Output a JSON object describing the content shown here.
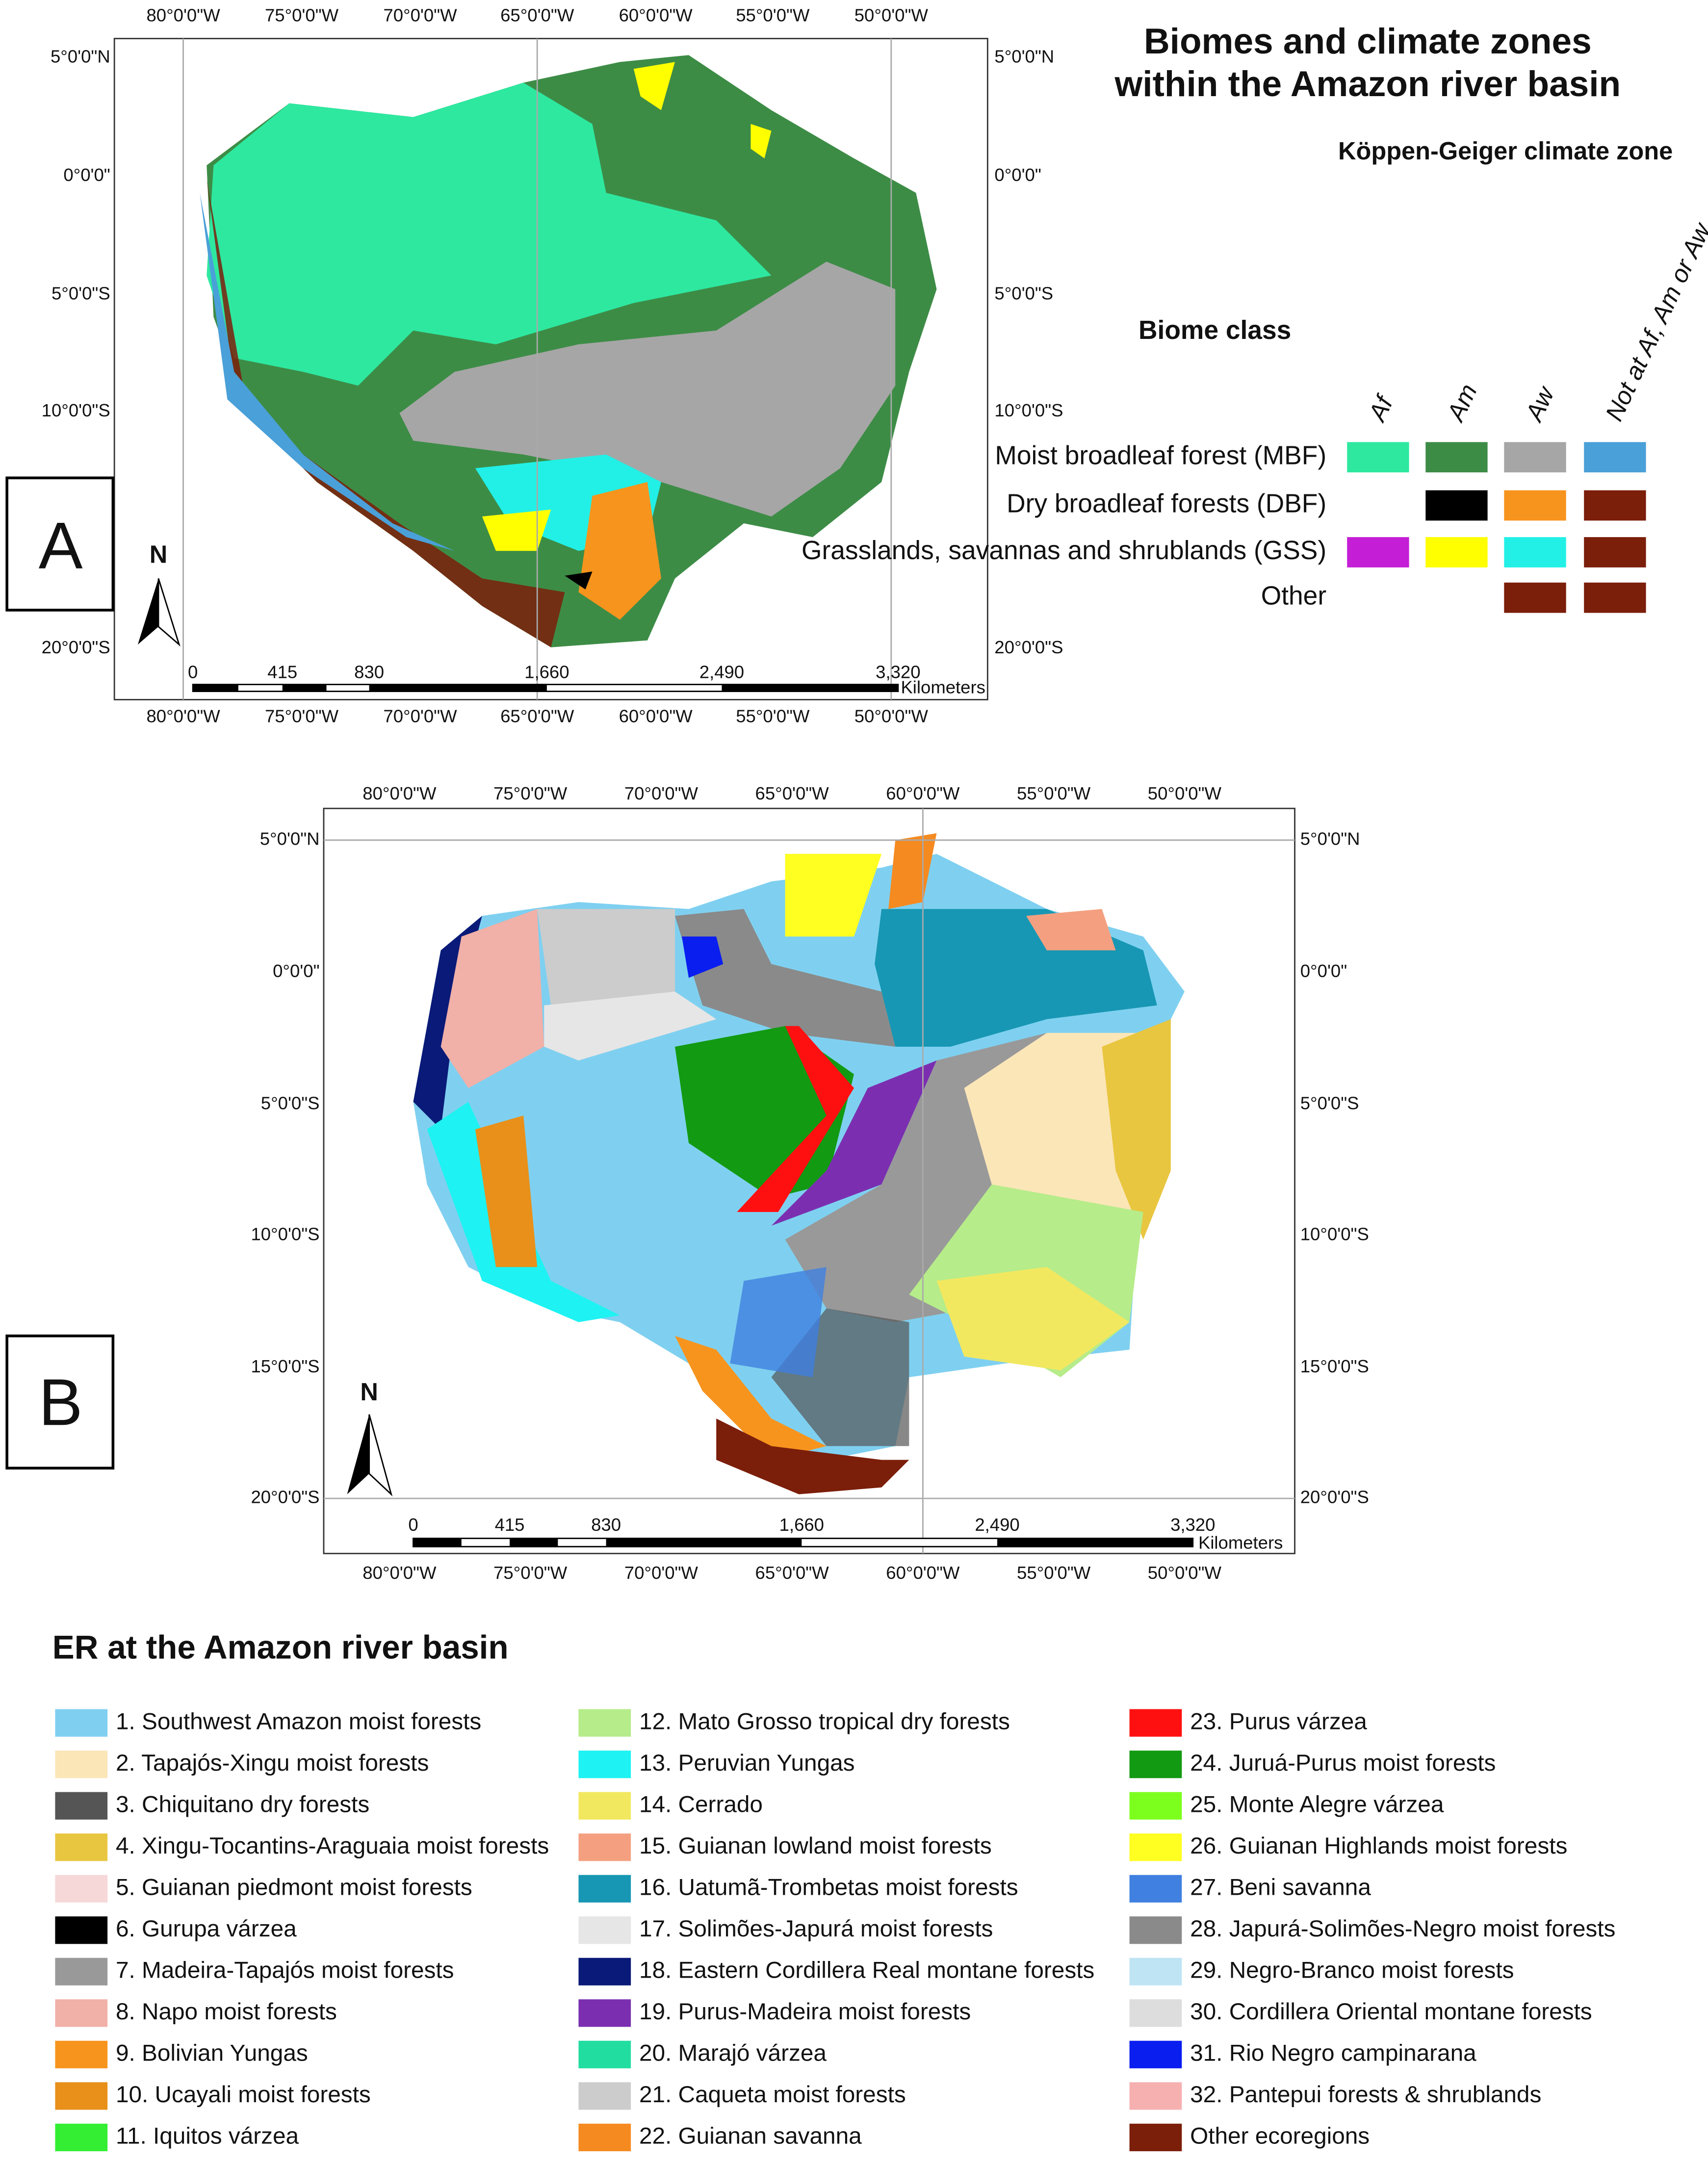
{
  "panel_a": {
    "label": "A",
    "title": [
      "Biomes and climate zones",
      "within the Amazon river basin"
    ],
    "climate_zone_title": "Köppen-Geiger climate zone",
    "biome_class_title": "Biome class",
    "climate_columns": [
      "Af",
      "Am",
      "Aw",
      "Not at Af, Am or Aw"
    ],
    "biome_rows": [
      {
        "label": "Moist broadleaf forest (MBF)",
        "colors": [
          "#2ee8a0",
          "#3d8c46",
          "#a6a6a6",
          "#4aa0d8"
        ]
      },
      {
        "label": "Dry broadleaf forests (DBF)",
        "colors": [
          null,
          "#000000",
          "#f7941d",
          "#7b1e0a"
        ]
      },
      {
        "label": "Grasslands, savannas and shrublands (GSS)",
        "colors": [
          "#c41ed6",
          "#ffff00",
          "#22f0e6",
          "#7b1e0a"
        ]
      },
      {
        "label": "Other",
        "colors": [
          null,
          null,
          "#7b1e0a",
          "#7b1e0a"
        ]
      }
    ],
    "lon_labels": [
      "80°0'0\"W",
      "75°0'0\"W",
      "70°0'0\"W",
      "65°0'0\"W",
      "60°0'0\"W",
      "55°0'0\"W",
      "50°0'0\"W"
    ],
    "lat_labels": [
      "5°0'0\"N",
      "0°0'0\"",
      "5°0'0\"S",
      "10°0'0\"S",
      "20°0'0\"S"
    ],
    "scale_labels": [
      "0",
      "415",
      "830",
      "1,660",
      "2,490",
      "3,320"
    ],
    "scale_unit": "Kilometers",
    "north": "N"
  },
  "panel_b": {
    "label": "B",
    "lon_labels": [
      "80°0'0\"W",
      "75°0'0\"W",
      "70°0'0\"W",
      "65°0'0\"W",
      "60°0'0\"W",
      "55°0'0\"W",
      "50°0'0\"W"
    ],
    "lat_labels": [
      "5°0'0\"N",
      "0°0'0\"",
      "5°0'0\"S",
      "10°0'0\"S",
      "15°0'0\"S",
      "20°0'0\"S"
    ],
    "scale_labels": [
      "0",
      "415",
      "830",
      "1,660",
      "2,490",
      "3,320"
    ],
    "scale_unit": "Kilometers",
    "north": "N",
    "legend_title": "ER at the Amazon river basin",
    "legend": [
      {
        "name": "1. Southwest Amazon moist forests",
        "color": "#7fd0f0"
      },
      {
        "name": "2. Tapajós-Xingu moist forests",
        "color": "#fbe6b8"
      },
      {
        "name": "3. Chiquitano dry forests",
        "color": "#555555"
      },
      {
        "name": "4. Xingu-Tocantins-Araguaia moist forests",
        "color": "#e8c640"
      },
      {
        "name": "5. Guianan piedmont moist forests",
        "color": "#f6d8d8"
      },
      {
        "name": "6. Gurupa várzea",
        "color": "#000000"
      },
      {
        "name": "7. Madeira-Tapajós moist forests",
        "color": "#999999"
      },
      {
        "name": "8. Napo moist forests",
        "color": "#f1b0a8"
      },
      {
        "name": "9. Bolivian Yungas",
        "color": "#f7941d"
      },
      {
        "name": "10. Ucayali moist forests",
        "color": "#e8901a"
      },
      {
        "name": "11. Iquitos várzea",
        "color": "#33ee33"
      },
      {
        "name": "12. Mato Grosso tropical dry forests",
        "color": "#b6ec8a"
      },
      {
        "name": "13. Peruvian Yungas",
        "color": "#1ef2f2"
      },
      {
        "name": "14. Cerrado",
        "color": "#f2e860"
      },
      {
        "name": "15. Guianan lowland moist forests",
        "color": "#f4a080"
      },
      {
        "name": "16. Uatumã-Trombetas moist forests",
        "color": "#1797b4"
      },
      {
        "name": "17. Solimões-Japurá moist forests",
        "color": "#e6e6e6"
      },
      {
        "name": "18. Eastern Cordillera Real montane forests",
        "color": "#0a1a78"
      },
      {
        "name": "19. Purus-Madeira moist forests",
        "color": "#7b2fb0"
      },
      {
        "name": "20. Marajó várzea",
        "color": "#22dda0"
      },
      {
        "name": "21. Caqueta moist forests",
        "color": "#cccccc"
      },
      {
        "name": "22. Guianan savanna",
        "color": "#f58a20"
      },
      {
        "name": "23. Purus várzea",
        "color": "#ff1010"
      },
      {
        "name": "24. Juruá-Purus moist forests",
        "color": "#129a12"
      },
      {
        "name": "25. Monte Alegre várzea",
        "color": "#7dff1e"
      },
      {
        "name": "26. Guianan Highlands moist forests",
        "color": "#ffff22"
      },
      {
        "name": "27. Beni savanna",
        "color": "#4080e0"
      },
      {
        "name": "28. Japurá-Solimões-Negro moist forests",
        "color": "#8a8a8a"
      },
      {
        "name": "29. Negro-Branco moist forests",
        "color": "#bfe4f4"
      },
      {
        "name": "30. Cordillera Oriental montane forests",
        "color": "#dddddd"
      },
      {
        "name": "31. Rio Negro campinarana",
        "color": "#0a1ef0"
      },
      {
        "name": "32. Pantepui forests & shrublands",
        "color": "#f6b0b0"
      },
      {
        "name": "Other ecoregions",
        "color": "#7b1e0a"
      }
    ]
  }
}
